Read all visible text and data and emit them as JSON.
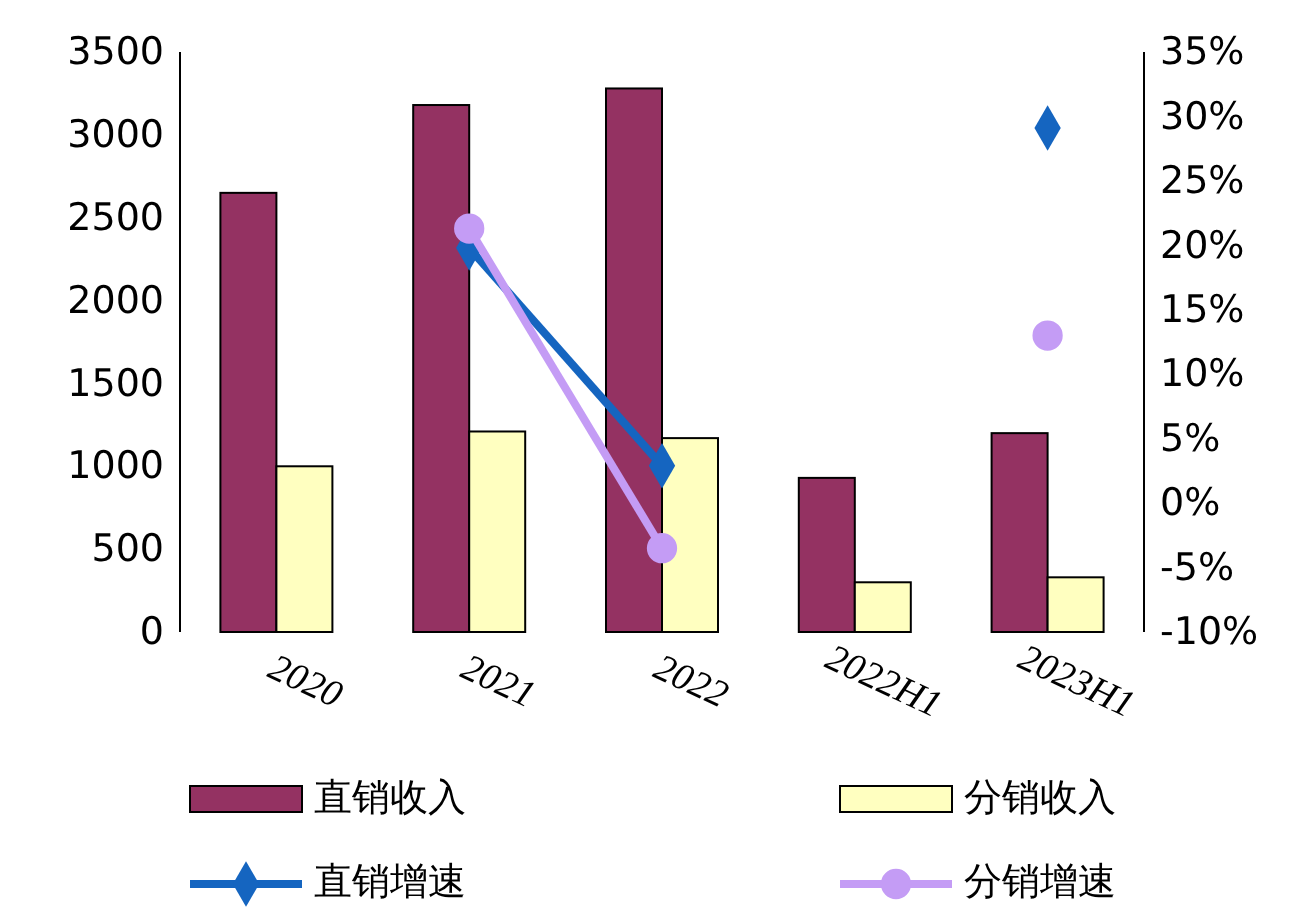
{
  "chart_data": {
    "type": "bar",
    "categories": [
      "2020",
      "2021",
      "2022",
      "2022H1",
      "2023H1"
    ],
    "series": [
      {
        "name": "直销收入",
        "color": "#943262",
        "values": [
          2650,
          3180,
          3280,
          930,
          1200
        ]
      },
      {
        "name": "分销收入",
        "color": "#ffffc0",
        "values": [
          1000,
          1210,
          1170,
          300,
          330
        ]
      },
      {
        "name": "直销增速",
        "type": "line",
        "axis": "y2",
        "color": "#1565c0",
        "marker": "diamond",
        "values": [
          null,
          19.8,
          2.9,
          null,
          29.1
        ]
      },
      {
        "name": "分销增速",
        "type": "line",
        "axis": "y2",
        "color": "#c49cf5",
        "marker": "circle",
        "values": [
          null,
          21.3,
          -3.5,
          null,
          13.0
        ]
      }
    ],
    "ylim": [
      0,
      3500
    ],
    "yticks": [
      0,
      500,
      1000,
      1500,
      2000,
      2500,
      3000,
      3500
    ],
    "y2lim": [
      -10,
      35
    ],
    "y2ticks": [
      {
        "value": -10,
        "label": "-10%"
      },
      {
        "value": -5,
        "label": "-5%"
      },
      {
        "value": 0,
        "label": "0%"
      },
      {
        "value": 5,
        "label": "5%"
      },
      {
        "value": 10,
        "label": "10%"
      },
      {
        "value": 15,
        "label": "15%"
      },
      {
        "value": 20,
        "label": "20%"
      },
      {
        "value": 25,
        "label": "25%"
      },
      {
        "value": 30,
        "label": "30%"
      },
      {
        "value": 35,
        "label": "35%"
      }
    ],
    "grid": false,
    "legend": "bottom"
  }
}
